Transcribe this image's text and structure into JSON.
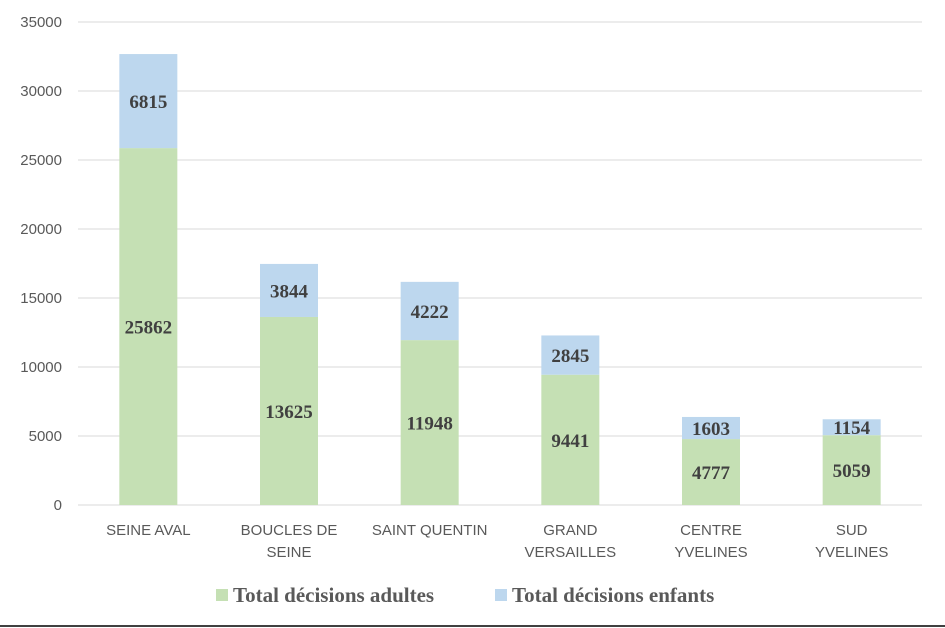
{
  "chart_data": {
    "type": "bar",
    "stacked": true,
    "title": "",
    "xlabel": "",
    "ylabel": "",
    "ylim": [
      0,
      35000
    ],
    "yticks": [
      0,
      5000,
      10000,
      15000,
      20000,
      25000,
      30000,
      35000
    ],
    "grid": true,
    "legend_position": "bottom",
    "categories": [
      [
        "SEINE AVAL"
      ],
      [
        "BOUCLES DE",
        "SEINE"
      ],
      [
        "SAINT QUENTIN"
      ],
      [
        "GRAND",
        "VERSAILLES"
      ],
      [
        "CENTRE",
        "YVELINES"
      ],
      [
        "SUD",
        "YVELINES"
      ]
    ],
    "series": [
      {
        "name": "Total décisions adultes",
        "color": "#c5e0b4",
        "values": [
          25862,
          13625,
          11948,
          9441,
          4777,
          5059
        ]
      },
      {
        "name": "Total décisions enfants",
        "color": "#bdd7ee",
        "values": [
          6815,
          3844,
          4222,
          2845,
          1603,
          1154
        ]
      }
    ]
  }
}
